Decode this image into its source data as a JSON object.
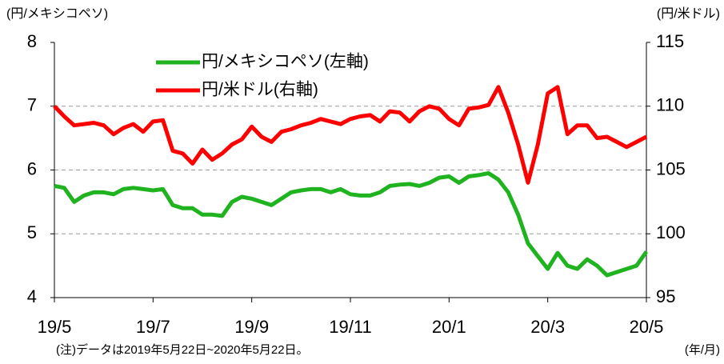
{
  "chart_data": {
    "type": "line",
    "y_label": "(円/メキシコペソ)",
    "y2_label": "(円/米ドル)",
    "x_unit": "(年/月)",
    "note": "(注)データは2019年5月22日~2020年5月22日。",
    "categories": [
      "19/5",
      null,
      null,
      null,
      null,
      null,
      null,
      null,
      null,
      null,
      "19/7",
      null,
      null,
      null,
      null,
      null,
      null,
      null,
      null,
      null,
      "19/9",
      null,
      null,
      null,
      null,
      null,
      null,
      null,
      null,
      null,
      "19/11",
      null,
      null,
      null,
      null,
      null,
      null,
      null,
      null,
      null,
      "20/1",
      null,
      null,
      null,
      null,
      null,
      null,
      null,
      null,
      null,
      "20/3",
      null,
      null,
      null,
      null,
      null,
      null,
      null,
      null,
      null,
      "20/5"
    ],
    "series": [
      {
        "name": "円/メキシコペソ(左軸)",
        "color": "#1fb31f",
        "values": [
          5.75,
          5.72,
          5.5,
          5.6,
          5.65,
          5.65,
          5.62,
          5.7,
          5.72,
          5.7,
          5.68,
          5.7,
          5.45,
          5.4,
          5.4,
          5.3,
          5.3,
          5.28,
          5.5,
          5.58,
          5.55,
          5.5,
          5.45,
          5.55,
          5.65,
          5.68,
          5.7,
          5.7,
          5.65,
          5.7,
          5.62,
          5.6,
          5.6,
          5.65,
          5.75,
          5.77,
          5.78,
          5.75,
          5.8,
          5.88,
          5.9,
          5.8,
          5.9,
          5.92,
          5.95,
          5.85,
          5.65,
          5.3,
          4.85,
          4.65,
          4.45,
          4.7,
          4.5,
          4.45,
          4.6,
          4.5,
          4.35,
          4.4,
          4.45,
          4.5,
          4.72
        ]
      },
      {
        "name": "円/米ドル(右軸)",
        "color": "#ff0000",
        "axis": "y2",
        "values": [
          110,
          109.2,
          108.5,
          108.6,
          108.7,
          108.5,
          107.8,
          108.3,
          108.6,
          108,
          108.8,
          108.9,
          106.5,
          106.3,
          105.5,
          106.6,
          105.8,
          106.3,
          107,
          107.4,
          108.4,
          107.6,
          107.2,
          108,
          108.2,
          108.5,
          108.7,
          109,
          108.8,
          108.6,
          109,
          109.2,
          109.3,
          108.8,
          109.6,
          109.5,
          108.8,
          109.6,
          110,
          109.8,
          109,
          108.5,
          109.8,
          109.9,
          110.1,
          111.5,
          109.5,
          107,
          104,
          107,
          111,
          111.5,
          107.8,
          108.5,
          108.5,
          107.5,
          107.6,
          107.2,
          106.8,
          107.2,
          107.6
        ]
      }
    ],
    "ylim": [
      4,
      8
    ],
    "yticks": [
      4,
      5,
      6,
      7,
      8
    ],
    "y2lim": [
      95,
      115
    ],
    "y2ticks": [
      95,
      100,
      105,
      110,
      115
    ],
    "grid": true
  }
}
